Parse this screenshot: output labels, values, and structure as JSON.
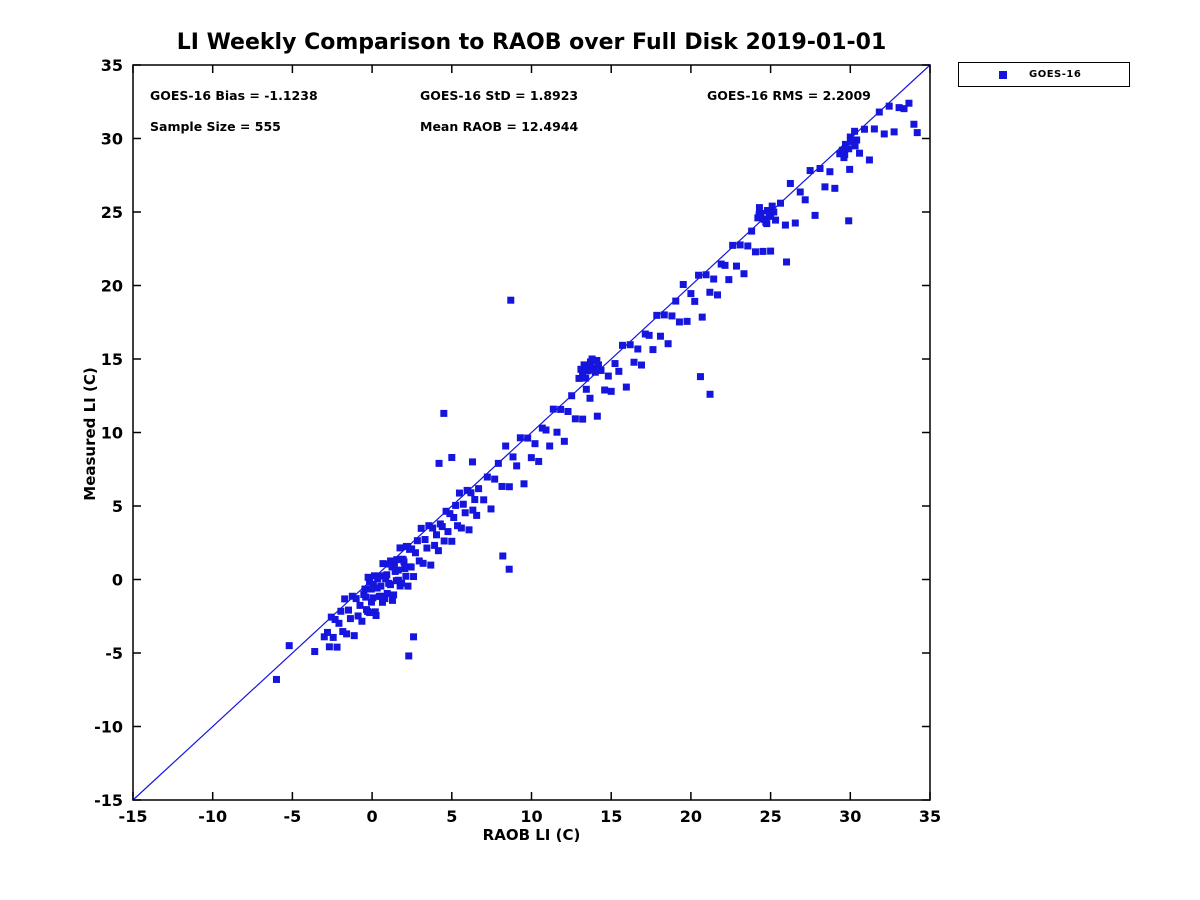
{
  "chart_data": {
    "type": "scatter",
    "title": "LI Weekly Comparison to RAOB over Full Disk 2019-01-01",
    "xlabel": "RAOB LI (C)",
    "ylabel": "Measured LI (C)",
    "xlim": [
      -15,
      35
    ],
    "ylim": [
      -15,
      35
    ],
    "ticks": [
      -15,
      -10,
      -5,
      0,
      5,
      10,
      15,
      20,
      25,
      30,
      35
    ],
    "grid": false,
    "marker_color": "#1515DE",
    "line_color": "#1515DE",
    "annotations": [
      {
        "text": "GOES-16 Bias = -1.1238"
      },
      {
        "text": "GOES-16 StD = 1.8923"
      },
      {
        "text": "GOES-16 RMS = 2.2009"
      },
      {
        "text": "Sample Size = 555"
      },
      {
        "text": "Mean RAOB = 12.4944"
      }
    ],
    "stats": {
      "bias": -1.1238,
      "std": 1.8923,
      "rms": 2.2009,
      "sample_size": 555,
      "mean_raob": 12.4944
    },
    "reference_line": {
      "from": [
        -15,
        -15
      ],
      "to": [
        35,
        35
      ]
    },
    "legend": {
      "position": "top-right-outside",
      "entries": [
        {
          "label": "GOES-16",
          "marker": "square",
          "color": "#1515DE"
        }
      ]
    },
    "series": [
      {
        "name": "GOES-16",
        "marker": "square",
        "color": "#1515DE",
        "points": [
          [
            -2.8,
            -3.6
          ],
          [
            -2.68,
            -4.58
          ],
          [
            -2.56,
            -2.56
          ],
          [
            -2.44,
            -3.94
          ],
          [
            -2.32,
            -2.72
          ],
          [
            -2.2,
            -4.6
          ],
          [
            -2.08,
            -2.98
          ],
          [
            -1.96,
            -2.16
          ],
          [
            -1.84,
            -3.54
          ],
          [
            -1.72,
            -1.32
          ],
          [
            -1.6,
            -3.7
          ],
          [
            -1.48,
            -2.08
          ],
          [
            -1.36,
            -2.66
          ],
          [
            -1.24,
            -1.14
          ],
          [
            -1.12,
            -3.82
          ],
          [
            -1.0,
            -1.3
          ],
          [
            -0.88,
            -2.48
          ],
          [
            -0.76,
            -1.76
          ],
          [
            -0.64,
            -2.84
          ],
          [
            -0.52,
            -1.02
          ],
          [
            -0.4,
            -1.2
          ],
          [
            -0.28,
            -2.18
          ],
          [
            -0.16,
            -0.16
          ],
          [
            -0.04,
            -1.54
          ],
          [
            0.08,
            -0.32
          ],
          [
            0.2,
            -2.2
          ],
          [
            0.32,
            -0.58
          ],
          [
            0.44,
            0.24
          ],
          [
            0.56,
            -1.14
          ],
          [
            0.68,
            1.08
          ],
          [
            0.8,
            -1.3
          ],
          [
            0.92,
            0.32
          ],
          [
            1.04,
            -0.26
          ],
          [
            1.16,
            1.26
          ],
          [
            1.28,
            -1.42
          ],
          [
            1.4,
            1.1
          ],
          [
            1.52,
            -0.08
          ],
          [
            1.64,
            0.64
          ],
          [
            1.76,
            -0.44
          ],
          [
            1.88,
            1.38
          ],
          [
            2.0,
            1.2
          ],
          [
            2.12,
            0.22
          ],
          [
            2.24,
            2.24
          ],
          [
            2.36,
            0.86
          ],
          [
            2.48,
            2.08
          ],
          [
            2.6,
            0.2
          ],
          [
            2.72,
            1.82
          ],
          [
            2.84,
            2.64
          ],
          [
            2.96,
            1.26
          ],
          [
            3.08,
            3.48
          ],
          [
            3.2,
            1.1
          ],
          [
            3.32,
            2.72
          ],
          [
            3.44,
            2.14
          ],
          [
            3.56,
            3.66
          ],
          [
            3.68,
            0.98
          ],
          [
            3.8,
            3.5
          ],
          [
            3.92,
            2.32
          ],
          [
            4.04,
            3.04
          ],
          [
            4.16,
            1.96
          ],
          [
            4.28,
            3.78
          ],
          [
            4.4,
            3.6
          ],
          [
            4.52,
            2.62
          ],
          [
            4.64,
            4.64
          ],
          [
            4.76,
            3.26
          ],
          [
            4.88,
            4.48
          ],
          [
            5.0,
            2.6
          ],
          [
            5.12,
            4.22
          ],
          [
            5.24,
            5.04
          ],
          [
            5.36,
            3.66
          ],
          [
            5.48,
            5.88
          ],
          [
            5.6,
            3.5
          ],
          [
            5.72,
            5.12
          ],
          [
            5.84,
            4.54
          ],
          [
            5.96,
            6.06
          ],
          [
            6.08,
            3.38
          ],
          [
            6.2,
            5.9
          ],
          [
            6.32,
            4.72
          ],
          [
            6.44,
            5.44
          ],
          [
            6.56,
            4.36
          ],
          [
            6.68,
            6.18
          ],
          [
            -0.45,
            -0.65
          ],
          [
            -0.35,
            -2.05
          ],
          [
            -0.25,
            0.15
          ],
          [
            -0.15,
            -2.25
          ],
          [
            -0.05,
            -0.65
          ],
          [
            0.05,
            -1.25
          ],
          [
            0.15,
            0.25
          ],
          [
            0.25,
            -2.45
          ],
          [
            0.35,
            0.05
          ],
          [
            0.45,
            -1.15
          ],
          [
            0.55,
            -0.45
          ],
          [
            0.65,
            -1.55
          ],
          [
            0.75,
            0.25
          ],
          [
            0.85,
            0.05
          ],
          [
            0.95,
            -0.95
          ],
          [
            1.05,
            1.05
          ],
          [
            1.15,
            -0.35
          ],
          [
            1.25,
            0.85
          ],
          [
            1.35,
            -1.05
          ],
          [
            1.45,
            0.55
          ],
          [
            1.55,
            1.35
          ],
          [
            1.65,
            -0.05
          ],
          [
            1.75,
            2.15
          ],
          [
            1.85,
            -0.25
          ],
          [
            1.95,
            1.35
          ],
          [
            2.05,
            0.75
          ],
          [
            2.15,
            2.25
          ],
          [
            2.25,
            -0.45
          ],
          [
            2.35,
            2.05
          ],
          [
            2.45,
            0.85
          ],
          [
            7.0,
            5.42
          ],
          [
            7.23,
            6.97
          ],
          [
            7.46,
            4.8
          ],
          [
            7.69,
            6.83
          ],
          [
            7.92,
            7.9
          ],
          [
            8.15,
            6.33
          ],
          [
            8.38,
            9.08
          ],
          [
            8.61,
            6.31
          ],
          [
            8.84,
            8.34
          ],
          [
            9.07,
            7.73
          ],
          [
            9.3,
            9.64
          ],
          [
            9.53,
            6.51
          ],
          [
            9.76,
            9.62
          ],
          [
            9.99,
            8.29
          ],
          [
            10.22,
            9.24
          ],
          [
            10.45,
            8.03
          ],
          [
            10.68,
            10.3
          ],
          [
            10.91,
            10.17
          ],
          [
            11.14,
            9.08
          ],
          [
            11.37,
            11.59
          ],
          [
            11.6,
            10.02
          ],
          [
            11.83,
            11.57
          ],
          [
            12.06,
            9.4
          ],
          [
            12.29,
            11.43
          ],
          [
            12.52,
            12.5
          ],
          [
            12.75,
            10.93
          ],
          [
            12.98,
            13.68
          ],
          [
            13.21,
            10.91
          ],
          [
            13.44,
            12.94
          ],
          [
            13.67,
            12.33
          ],
          [
            13.9,
            14.24
          ],
          [
            14.13,
            11.11
          ],
          [
            14.36,
            14.22
          ],
          [
            14.59,
            12.89
          ],
          [
            14.82,
            13.84
          ],
          [
            13.1,
            14.3
          ],
          [
            13.3,
            14.6
          ],
          [
            13.5,
            14.2
          ],
          [
            13.7,
            14.8
          ],
          [
            13.9,
            14.4
          ],
          [
            14.1,
            14.9
          ],
          [
            13.2,
            13.9
          ],
          [
            13.6,
            14.5
          ],
          [
            14.0,
            14.1
          ],
          [
            13.4,
            13.7
          ],
          [
            13.8,
            15.0
          ],
          [
            14.2,
            14.6
          ],
          [
            15.0,
            12.8
          ],
          [
            15.24,
            14.69
          ],
          [
            15.48,
            14.16
          ],
          [
            15.71,
            15.93
          ],
          [
            15.95,
            13.09
          ],
          [
            16.19,
            15.97
          ],
          [
            16.43,
            14.78
          ],
          [
            16.67,
            15.68
          ],
          [
            16.9,
            14.59
          ],
          [
            17.14,
            16.7
          ],
          [
            17.38,
            16.61
          ],
          [
            17.62,
            15.64
          ],
          [
            17.86,
            17.97
          ],
          [
            18.09,
            16.55
          ],
          [
            18.33,
            18.0
          ],
          [
            18.57,
            16.04
          ],
          [
            18.81,
            17.93
          ],
          [
            19.05,
            18.94
          ],
          [
            19.28,
            17.52
          ],
          [
            19.52,
            20.07
          ],
          [
            19.76,
            17.56
          ],
          [
            20.0,
            19.45
          ],
          [
            20.24,
            18.92
          ],
          [
            20.48,
            20.7
          ],
          [
            20.71,
            17.85
          ],
          [
            20.95,
            20.73
          ],
          [
            21.19,
            19.54
          ],
          [
            21.43,
            20.44
          ],
          [
            21.67,
            19.36
          ],
          [
            21.9,
            21.46
          ],
          [
            22.14,
            21.37
          ],
          [
            22.38,
            20.4
          ],
          [
            22.62,
            22.73
          ],
          [
            22.86,
            21.32
          ],
          [
            23.09,
            22.76
          ],
          [
            23.33,
            20.8
          ],
          [
            23.57,
            22.69
          ],
          [
            23.81,
            23.7
          ],
          [
            24.05,
            22.29
          ],
          [
            24.28,
            24.83
          ],
          [
            24.52,
            22.32
          ],
          [
            24.76,
            24.21
          ],
          [
            24.2,
            24.6
          ],
          [
            24.4,
            24.9
          ],
          [
            24.6,
            24.5
          ],
          [
            24.8,
            25.1
          ],
          [
            25.0,
            24.7
          ],
          [
            25.2,
            25.0
          ],
          [
            24.3,
            25.3
          ],
          [
            24.7,
            24.3
          ],
          [
            25.1,
            25.4
          ],
          [
            24.9,
            24.8
          ],
          [
            25.0,
            22.34
          ],
          [
            25.31,
            24.45
          ],
          [
            25.62,
            25.6
          ],
          [
            25.93,
            24.11
          ],
          [
            26.24,
            26.94
          ],
          [
            26.55,
            24.25
          ],
          [
            26.86,
            26.36
          ],
          [
            27.17,
            25.83
          ],
          [
            27.48,
            27.82
          ],
          [
            27.79,
            24.77
          ],
          [
            28.1,
            27.96
          ],
          [
            28.41,
            26.71
          ],
          [
            28.72,
            27.74
          ],
          [
            29.03,
            26.61
          ],
          [
            29.34,
            28.96
          ],
          [
            29.65,
            28.91
          ],
          [
            29.96,
            27.9
          ],
          [
            30.27,
            30.49
          ],
          [
            30.58,
            29.0
          ],
          [
            30.89,
            30.63
          ],
          [
            31.2,
            28.54
          ],
          [
            31.51,
            30.65
          ],
          [
            31.82,
            31.8
          ],
          [
            32.13,
            30.31
          ],
          [
            32.44,
            32.2
          ],
          [
            32.75,
            30.45
          ],
          [
            33.06,
            32.1
          ],
          [
            33.37,
            32.03
          ],
          [
            33.68,
            32.4
          ],
          [
            33.99,
            30.97
          ],
          [
            29.5,
            29.2
          ],
          [
            29.7,
            29.6
          ],
          [
            29.9,
            29.3
          ],
          [
            30.1,
            29.8
          ],
          [
            30.3,
            29.5
          ],
          [
            29.6,
            28.7
          ],
          [
            30.0,
            30.1
          ],
          [
            30.4,
            29.9
          ],
          [
            -6.0,
            -6.8
          ],
          [
            -5.2,
            -4.5
          ],
          [
            -3.6,
            -4.9
          ],
          [
            -3.0,
            -3.9
          ],
          [
            2.3,
            -5.2
          ],
          [
            2.6,
            -3.9
          ],
          [
            4.5,
            11.3
          ],
          [
            8.7,
            19.0
          ],
          [
            8.6,
            0.7
          ],
          [
            8.2,
            1.6
          ],
          [
            21.2,
            12.6
          ],
          [
            20.6,
            13.8
          ],
          [
            26.0,
            21.6
          ],
          [
            29.9,
            24.4
          ],
          [
            34.2,
            30.4
          ],
          [
            4.2,
            7.9
          ],
          [
            5.0,
            8.3
          ],
          [
            6.3,
            8.0
          ]
        ]
      }
    ]
  }
}
